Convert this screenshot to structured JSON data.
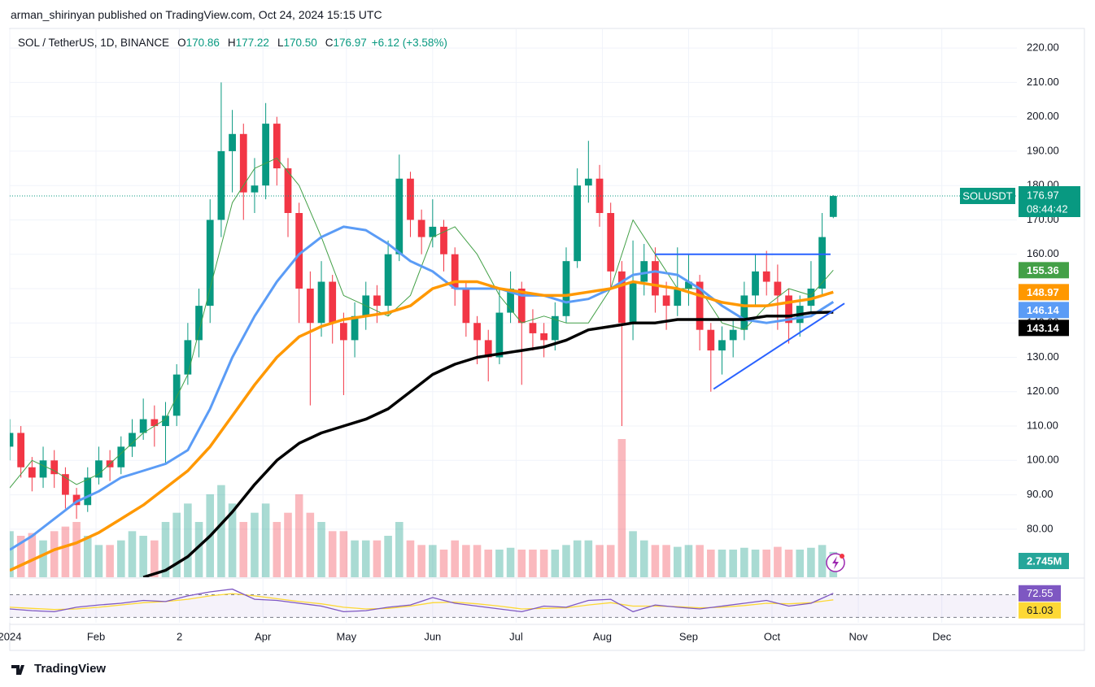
{
  "top_line": "arman_shirinyan published on TradingView.com, Oct 24, 2024 15:15 UTC",
  "header": {
    "symbol": "SOL / TetherUS, 1D, BINANCE",
    "items": [
      {
        "key": "O",
        "value": "170.86"
      },
      {
        "key": "H",
        "value": "177.22"
      },
      {
        "key": "L",
        "value": "170.50"
      },
      {
        "key": "C",
        "value": "176.97"
      }
    ],
    "change": "+6.12 (+3.58%)"
  },
  "footer": "TradingView",
  "chart_data": {
    "type": "candlestick",
    "x": [
      0,
      4,
      8,
      12,
      16,
      20,
      24,
      28,
      32,
      36,
      40,
      44,
      48,
      52,
      56,
      60,
      64,
      68,
      72,
      76,
      80,
      84,
      88,
      92,
      96,
      100,
      104,
      108,
      112,
      116,
      120,
      124,
      128,
      132,
      136,
      140,
      144,
      148,
      152,
      156,
      160,
      164,
      168,
      172,
      176,
      180,
      184,
      188,
      192,
      196,
      200,
      204,
      208,
      212,
      216,
      220,
      224,
      228,
      232,
      236,
      240,
      244,
      248,
      252,
      256,
      260,
      264,
      268,
      272,
      276,
      280,
      284,
      288,
      292,
      296
    ],
    "open": [
      104,
      108,
      98,
      95,
      100,
      96,
      90,
      87,
      95,
      100,
      98,
      104,
      108,
      112,
      110,
      113,
      125,
      135,
      145,
      170,
      190,
      195,
      178,
      180,
      198,
      185,
      172,
      150,
      140,
      152,
      140,
      135,
      142,
      148,
      145,
      160,
      182,
      170,
      165,
      168,
      160,
      150,
      140,
      135,
      130,
      143,
      150,
      140,
      137,
      135,
      142,
      158,
      180,
      182,
      172,
      155,
      140,
      152,
      158,
      148,
      145,
      150,
      152,
      138,
      132,
      135,
      138,
      148,
      155,
      152,
      148,
      140,
      145,
      150,
      170.86
    ],
    "high": [
      112,
      110,
      101,
      104,
      103,
      98,
      92,
      98,
      104,
      103,
      107,
      112,
      118,
      116,
      117,
      128,
      140,
      150,
      176,
      210,
      202,
      198,
      188,
      204,
      200,
      188,
      175,
      155,
      158,
      154,
      143,
      146,
      152,
      151,
      164,
      189,
      184,
      173,
      176,
      170,
      162,
      152,
      142,
      138,
      150,
      155,
      152,
      144,
      140,
      146,
      162,
      185,
      193,
      186,
      175,
      158,
      164,
      163,
      162,
      152,
      162,
      160,
      154,
      140,
      139,
      141,
      152,
      160,
      161,
      157,
      150,
      148,
      158,
      172,
      177.22
    ],
    "low": [
      100,
      95,
      91,
      92,
      92,
      86,
      83,
      85,
      93,
      94,
      96,
      101,
      106,
      104,
      99,
      110,
      122,
      130,
      140,
      165,
      178,
      170,
      172,
      176,
      180,
      165,
      140,
      116,
      136,
      134,
      119,
      130,
      138,
      140,
      142,
      158,
      165,
      160,
      162,
      155,
      145,
      136,
      128,
      123,
      128,
      140,
      122,
      132,
      130,
      132,
      140,
      156,
      175,
      168,
      150,
      110,
      135,
      148,
      143,
      138,
      142,
      145,
      132,
      120,
      125,
      130,
      135,
      145,
      148,
      138,
      134,
      136,
      143,
      148,
      170.5
    ],
    "close": [
      108,
      98,
      95,
      100,
      96,
      90,
      87,
      95,
      100,
      98,
      104,
      108,
      112,
      110,
      113,
      125,
      135,
      145,
      170,
      190,
      195,
      178,
      180,
      198,
      185,
      172,
      150,
      140,
      152,
      140,
      135,
      142,
      148,
      145,
      160,
      182,
      170,
      165,
      168,
      160,
      150,
      140,
      135,
      130,
      143,
      150,
      140,
      137,
      135,
      142,
      158,
      180,
      182,
      172,
      155,
      140,
      152,
      158,
      148,
      145,
      150,
      152,
      138,
      132,
      135,
      138,
      148,
      155,
      152,
      148,
      140,
      145,
      150,
      165,
      176.97
    ],
    "up_color": "#089981",
    "down_color": "#f23645",
    "xlim": [
      0,
      362
    ],
    "ylim": [
      66,
      225
    ],
    "yticks": [
      {
        "value": 80,
        "label": "80.00"
      },
      {
        "value": 90,
        "label": "90.00"
      },
      {
        "value": 100,
        "label": "100.00"
      },
      {
        "value": 110,
        "label": "110.00"
      },
      {
        "value": 120,
        "label": "120.00"
      },
      {
        "value": 130,
        "label": "130.00"
      },
      {
        "value": 140,
        "label": "140.00"
      },
      {
        "value": 150,
        "label": "150.00"
      },
      {
        "value": 160,
        "label": "160.00"
      },
      {
        "value": 170,
        "label": "170.00"
      },
      {
        "value": 180,
        "label": "180.00"
      },
      {
        "value": 190,
        "label": "190.00"
      },
      {
        "value": 200,
        "label": "200.00"
      },
      {
        "value": 210,
        "label": "210.00"
      },
      {
        "value": 220,
        "label": "220.00"
      }
    ],
    "xticks": [
      {
        "value": 0,
        "label": "2024"
      },
      {
        "value": 31,
        "label": "Feb"
      },
      {
        "value": 61,
        "label": "2"
      },
      {
        "value": 91,
        "label": "Apr"
      },
      {
        "value": 121,
        "label": "May"
      },
      {
        "value": 152,
        "label": "Jun"
      },
      {
        "value": 182,
        "label": "Jul"
      },
      {
        "value": 213,
        "label": "Aug"
      },
      {
        "value": 244,
        "label": "Sep"
      },
      {
        "value": 274,
        "label": "Oct"
      },
      {
        "value": 305,
        "label": "Nov"
      },
      {
        "value": 335,
        "label": "Dec"
      }
    ],
    "grid": true,
    "price_tag": {
      "symbol": "SOLUSDT",
      "countdown": "08:44:42",
      "color": "#089981"
    },
    "ma_x": [
      0,
      8,
      16,
      24,
      32,
      40,
      48,
      56,
      64,
      72,
      80,
      88,
      96,
      104,
      112,
      120,
      128,
      136,
      144,
      152,
      160,
      168,
      176,
      184,
      192,
      200,
      208,
      216,
      224,
      232,
      240,
      248,
      256,
      264,
      272,
      280,
      288,
      296
    ],
    "ma": [
      {
        "color": "#43a047",
        "width": 1,
        "values": [
          92,
          100,
          97,
          93,
          96,
          102,
          108,
          112,
          125,
          150,
          175,
          185,
          188,
          180,
          165,
          148,
          145,
          142,
          148,
          165,
          168,
          160,
          148,
          140,
          142,
          140,
          140,
          150,
          170,
          160,
          150,
          150,
          140,
          138,
          145,
          150,
          148,
          155.36
        ]
      },
      {
        "color": "#5b9cf6",
        "width": 3,
        "values": [
          74,
          78,
          83,
          88,
          91,
          95,
          97,
          99,
          103,
          115,
          130,
          142,
          152,
          160,
          165,
          168,
          167,
          163,
          158,
          155,
          150,
          150,
          150,
          148,
          148,
          146,
          147,
          150,
          154,
          155,
          154,
          150,
          145,
          141,
          140,
          141,
          142,
          146.14
        ]
      },
      {
        "color": "#ff9800",
        "width": 3.5,
        "values": [
          68,
          71,
          74,
          76,
          79,
          83,
          87,
          92,
          97,
          104,
          113,
          122,
          130,
          136,
          139,
          141,
          142,
          143,
          145,
          150,
          152,
          152,
          150,
          149,
          148,
          148,
          149,
          150,
          152,
          151,
          150,
          148,
          146,
          145,
          145,
          146,
          147,
          148.97
        ]
      },
      {
        "color": "#000000",
        "width": 3.5,
        "values": [
          null,
          null,
          null,
          null,
          null,
          null,
          66,
          68,
          72,
          78,
          85,
          93,
          100,
          105,
          108,
          110,
          112,
          115,
          120,
          125,
          128,
          130,
          131,
          132,
          133,
          135,
          138,
          139,
          140,
          140,
          141,
          141,
          141,
          141,
          142,
          142,
          143,
          143.14
        ]
      }
    ],
    "volume": {
      "color": "#26a69a",
      "last_label": "2.745M",
      "values": [
        5,
        4.5,
        4.8,
        4,
        5,
        5.5,
        6,
        4.5,
        3.5,
        3.5,
        4,
        5,
        4.5,
        4,
        6,
        7,
        8,
        6,
        9,
        10,
        8,
        6,
        7,
        8,
        6,
        7,
        9,
        7,
        6,
        5,
        5,
        4,
        4,
        4,
        4.5,
        6,
        4,
        3.5,
        3.5,
        3,
        4,
        3.5,
        3.5,
        3,
        3,
        3.2,
        3,
        3,
        3,
        3,
        3.5,
        4,
        4,
        3.5,
        3.5,
        15,
        5,
        4,
        3.5,
        3.5,
        3.3,
        3.5,
        3.5,
        3,
        3,
        3,
        3.2,
        3,
        3,
        3.3,
        3,
        3,
        3.2,
        3.5,
        2.745
      ]
    },
    "rsi": {
      "ylim": [
        22,
        98
      ],
      "levels": [
        70,
        30
      ],
      "series": [
        {
          "color": "#7e57c2",
          "label_text_color": "#ffffff",
          "values": [
            45,
            42,
            40,
            48,
            52,
            55,
            60,
            58,
            68,
            75,
            80,
            62,
            60,
            55,
            50,
            40,
            42,
            48,
            52,
            65,
            55,
            50,
            45,
            40,
            50,
            48,
            60,
            62,
            40,
            52,
            48,
            45,
            50,
            55,
            60,
            50,
            55,
            72.55
          ]
        },
        {
          "color": "#fdd835",
          "label_text_color": "#131722",
          "values": [
            48,
            46,
            44,
            45,
            48,
            52,
            56,
            58,
            62,
            68,
            72,
            68,
            63,
            58,
            54,
            48,
            45,
            46,
            50,
            56,
            57,
            54,
            50,
            45,
            46,
            47,
            52,
            56,
            50,
            50,
            49,
            47,
            48,
            51,
            55,
            54,
            56,
            61.03
          ]
        }
      ]
    },
    "drawings": [
      {
        "color": "#2962ff",
        "x": [
          232,
          295
        ],
        "y": [
          160,
          160
        ]
      },
      {
        "color": "#2962ff",
        "x": [
          253,
          300
        ],
        "y": [
          120.8,
          145.7
        ]
      }
    ]
  }
}
